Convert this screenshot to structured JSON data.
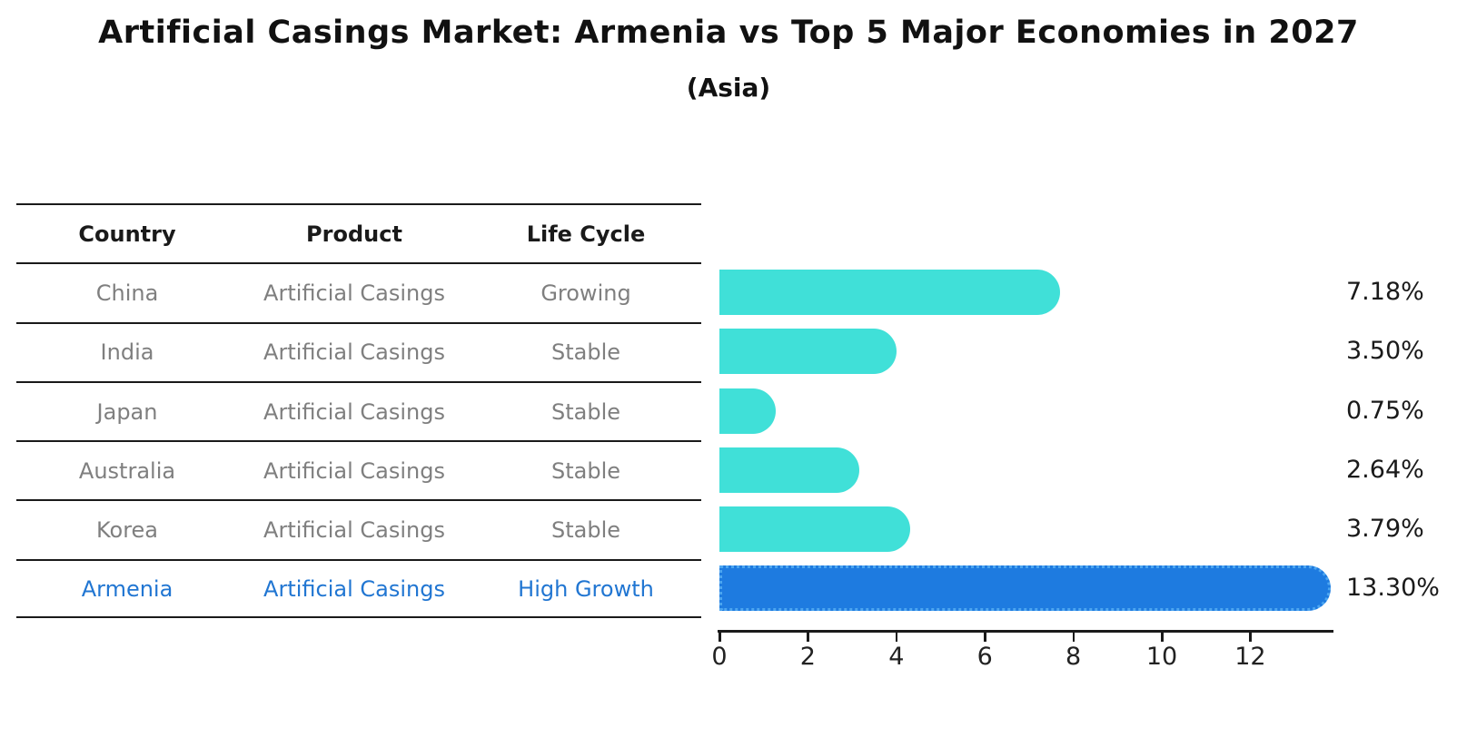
{
  "title": "Artificial Casings Market: Armenia vs Top 5 Major Economies in 2027",
  "subtitle": "(Asia)",
  "table": {
    "headers": [
      "Country",
      "Product",
      "Life Cycle"
    ],
    "rows": [
      {
        "country": "China",
        "product": "Artificial Casings",
        "life_cycle": "Growing",
        "highlight": false
      },
      {
        "country": "India",
        "product": "Artificial Casings",
        "life_cycle": "Stable",
        "highlight": false
      },
      {
        "country": "Japan",
        "product": "Artificial Casings",
        "life_cycle": "Stable",
        "highlight": false
      },
      {
        "country": "Australia",
        "product": "Artificial Casings",
        "life_cycle": "Stable",
        "highlight": false
      },
      {
        "country": "Korea",
        "product": "Artificial Casings",
        "life_cycle": "Stable",
        "highlight": false
      },
      {
        "country": "Armenia",
        "product": "Artificial Casings",
        "life_cycle": "High Growth",
        "highlight": true
      }
    ]
  },
  "chart_data": {
    "type": "bar",
    "orientation": "horizontal",
    "title": "Artificial Casings Market: Armenia vs Top 5 Major Economies in 2027 (Asia)",
    "categories": [
      "China",
      "India",
      "Japan",
      "Australia",
      "Korea",
      "Armenia"
    ],
    "values": [
      7.18,
      3.5,
      0.75,
      2.64,
      3.79,
      13.3
    ],
    "labels": [
      "7.18%",
      "3.50%",
      "0.75%",
      "2.64%",
      "3.79%",
      "13.30%"
    ],
    "unit": "percent",
    "xlabel": "",
    "ylabel": "",
    "xlim": [
      0,
      14
    ],
    "xticks": [
      0,
      2,
      4,
      6,
      8,
      10,
      12
    ],
    "grid": false,
    "legend": "none",
    "highlight_index": 5,
    "colors": {
      "default": "#40E0D8",
      "highlight": "#1E7BE0",
      "highlight_edge": "#4da6f0",
      "text": "#1a1a1a",
      "muted_text": "#7f7f7f",
      "highlight_text": "#2176d2"
    }
  }
}
